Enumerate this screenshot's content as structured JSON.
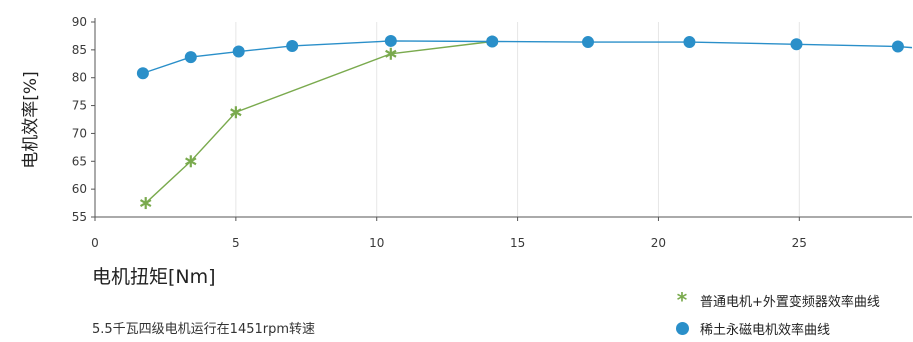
{
  "colors": {
    "series_a": "#7aaa4e",
    "series_b": "#2a8fc9",
    "axis": "#555555"
  },
  "chart_data": {
    "type": "line",
    "title": "",
    "xlabel": "电机扭矩[Nm]",
    "ylabel": "电机效率[%]",
    "xlim": [
      0,
      29
    ],
    "ylim": [
      55,
      90
    ],
    "x_ticks": [
      "0",
      "5",
      "10",
      "15",
      "20",
      "25"
    ],
    "x_tick_values": [
      0,
      5,
      10,
      15,
      20,
      25
    ],
    "y_ticks": [
      "55",
      "60",
      "65",
      "70",
      "75",
      "80",
      "85",
      "90"
    ],
    "y_tick_values": [
      55,
      60,
      65,
      70,
      75,
      80,
      85,
      90
    ],
    "grid": true,
    "legend_position": "bottom-right",
    "series": [
      {
        "name": "普通电机+外置变频器效率曲线",
        "marker": "star",
        "color": "#7aaa4e",
        "points": [
          [
            1.8,
            57.5
          ],
          [
            3.4,
            65
          ],
          [
            5.0,
            73.8
          ],
          [
            10.5,
            84.3
          ],
          [
            14.1,
            86.5
          ]
        ]
      },
      {
        "name": "稀土永磁电机效率曲线",
        "marker": "circle",
        "color": "#2a8fc9",
        "points": [
          [
            1.7,
            80.8
          ],
          [
            3.4,
            83.7
          ],
          [
            5.1,
            84.7
          ],
          [
            7.0,
            85.7
          ],
          [
            10.5,
            86.6
          ],
          [
            14.1,
            86.5
          ],
          [
            17.5,
            86.4
          ],
          [
            21.1,
            86.4
          ],
          [
            24.9,
            86.0
          ],
          [
            28.5,
            85.6
          ],
          [
            29.0,
            85.4
          ]
        ]
      }
    ]
  },
  "legend": {
    "items": [
      {
        "label": "普通电机+外置变频器效率曲线"
      },
      {
        "label": "稀土永磁电机效率曲线"
      }
    ]
  },
  "caption": "5.5千瓦四级电机运行在1451rpm转速"
}
